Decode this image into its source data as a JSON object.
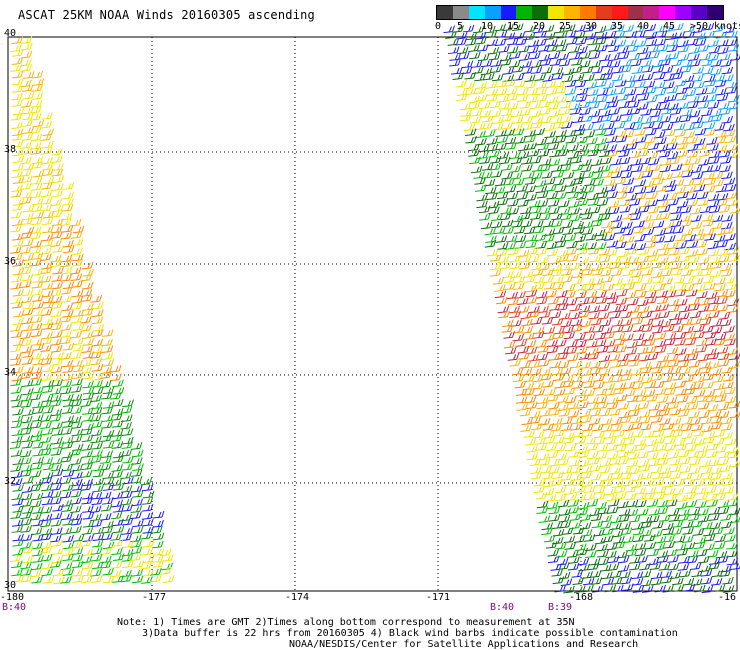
{
  "title": "ASCAT 25KM NOAA Winds 20160305 ascending",
  "legend": {
    "labels": [
      "0",
      "5",
      "10",
      "15",
      "20",
      "25",
      "30",
      "35",
      "40",
      "45",
      ">50 knots"
    ],
    "colors": [
      "#3a3a3a",
      "#8a8a8a",
      "#00e5ff",
      "#0aa0ff",
      "#1a1aff",
      "#00b400",
      "#0b6e0b",
      "#f2e600",
      "#ffb400",
      "#ff7a00",
      "#e43c1e",
      "#ff1a1a",
      "#a0304a",
      "#c01f8c",
      "#ff00ff",
      "#a000ff",
      "#5a00c8",
      "#2e0070"
    ]
  },
  "axes": {
    "lat_labels": [
      "40",
      "38",
      "36",
      "34",
      "32",
      "30"
    ],
    "lon_labels": [
      "-180",
      "-177",
      "-174",
      "-171",
      "-168",
      "-16"
    ]
  },
  "pass_labels": [
    "B:40",
    "B:40",
    "B:39"
  ],
  "notes": {
    "line1": "Note: 1) Times are GMT 2)Times along bottom correspond to measurement at 35N",
    "line2": "3)Data buffer is 22 hrs from 20160305 4) Black wind barbs indicate possible contamination",
    "line3": "NOAA/NESDIS/Center for Satellite Applications and Research"
  }
}
